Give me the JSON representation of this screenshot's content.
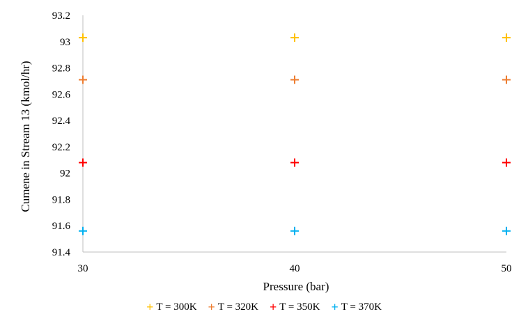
{
  "chart_data": {
    "type": "scatter",
    "xlabel": "Pressure (bar)",
    "ylabel": "Cumene in Stream 13 (kmol/hr)",
    "xlim": [
      30,
      50
    ],
    "ylim": [
      91.4,
      93.2
    ],
    "xticks": [
      "30",
      "40",
      "50"
    ],
    "yticks": [
      "91.4",
      "91.6",
      "91.8",
      "92",
      "92.2",
      "92.4",
      "92.6",
      "92.8",
      "93",
      "93.2"
    ],
    "grid": false,
    "legend_position": "bottom",
    "marker": "plus",
    "series": [
      {
        "name": "T = 300K",
        "color": "#FFC000",
        "x": [
          30,
          40,
          50
        ],
        "y": [
          93.03,
          93.03,
          93.03
        ]
      },
      {
        "name": "T = 320K",
        "color": "#ED7D31",
        "x": [
          30,
          40,
          50
        ],
        "y": [
          92.71,
          92.71,
          92.71
        ]
      },
      {
        "name": "T = 350K",
        "color": "#FF0000",
        "x": [
          30,
          40,
          50
        ],
        "y": [
          92.08,
          92.08,
          92.08
        ]
      },
      {
        "name": "T = 370K",
        "color": "#00B0F0",
        "x": [
          30,
          40,
          50
        ],
        "y": [
          91.56,
          91.56,
          91.56
        ]
      }
    ]
  }
}
